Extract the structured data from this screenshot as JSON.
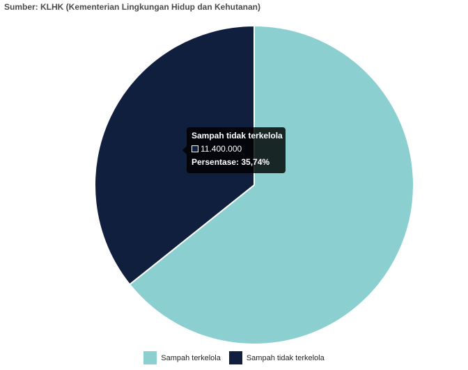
{
  "source": "Sumber: KLHK (Kementerian Lingkungan Hidup dan Kehutanan)",
  "chart_data": {
    "type": "pie",
    "categories": [
      "Sampah terkelola",
      "Sampah tidak terkelola"
    ],
    "values": [
      20500000,
      11400000
    ],
    "colors": [
      "#8ccfd0",
      "#111f3f"
    ],
    "legend_position": "bottom-center"
  },
  "tooltip": {
    "title": "Sampah tidak terkelola",
    "value": "11.400.000",
    "footer": "Persentase: 35,74%",
    "swatch_color": "#111f3f"
  },
  "legend": {
    "items": [
      {
        "label": "Sampah terkelola",
        "color": "#8ccfd0"
      },
      {
        "label": "Sampah tidak terkelola",
        "color": "#111f3f"
      }
    ]
  }
}
